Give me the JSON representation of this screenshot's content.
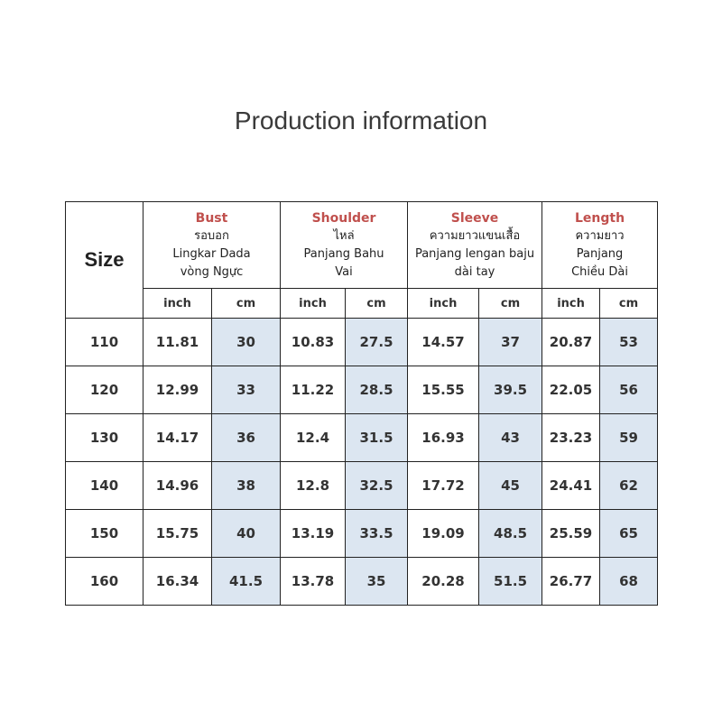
{
  "title": "Production information",
  "table": {
    "size_header": "Size",
    "groups": [
      {
        "en": "Bust",
        "lines": [
          "รอบอก",
          "Lingkar Dada",
          "vòng Ngực"
        ]
      },
      {
        "en": "Shoulder",
        "lines": [
          "ไหล่",
          "Panjang Bahu",
          "Vai"
        ]
      },
      {
        "en": "Sleeve",
        "lines": [
          "ความยาวแขนเสื้อ",
          "Panjang lengan baju",
          "dài tay"
        ]
      },
      {
        "en": "Length",
        "lines": [
          "ความยาว",
          "Panjang",
          "Chiều Dài"
        ]
      }
    ],
    "units": [
      "inch",
      "cm",
      "inch",
      "cm",
      "inch",
      "cm",
      "inch",
      "cm"
    ],
    "rows": [
      [
        "110",
        "11.81",
        "30",
        "10.83",
        "27.5",
        "14.57",
        "37",
        "20.87",
        "53"
      ],
      [
        "120",
        "12.99",
        "33",
        "11.22",
        "28.5",
        "15.55",
        "39.5",
        "22.05",
        "56"
      ],
      [
        "130",
        "14.17",
        "36",
        "12.4",
        "31.5",
        "16.93",
        "43",
        "23.23",
        "59"
      ],
      [
        "140",
        "14.96",
        "38",
        "12.8",
        "32.5",
        "17.72",
        "45",
        "24.41",
        "62"
      ],
      [
        "150",
        "15.75",
        "40",
        "13.19",
        "33.5",
        "19.09",
        "48.5",
        "25.59",
        "65"
      ],
      [
        "160",
        "16.34",
        "41.5",
        "13.78",
        "35",
        "20.28",
        "51.5",
        "26.77",
        "68"
      ]
    ]
  },
  "colors": {
    "accent_header": "#c0504d",
    "cm_column_fill": "#dce6f1"
  }
}
